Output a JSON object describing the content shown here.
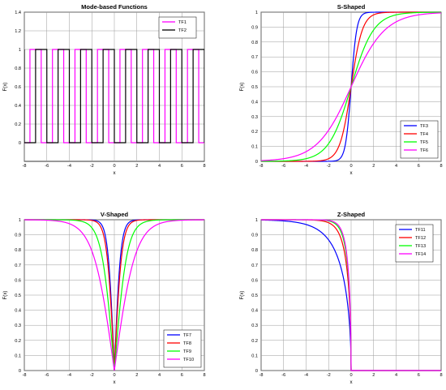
{
  "chart_data": [
    {
      "type": "line",
      "title": "Mode-based Functions",
      "xlabel": "x",
      "ylabel": "F(x)",
      "xlim": [
        -8,
        8
      ],
      "ylim": [
        -0.2,
        1.4
      ],
      "xticks": [
        "-8",
        "-6",
        "-4",
        "-2",
        "0",
        "2",
        "4",
        "6",
        "8"
      ],
      "yticks": [
        "0",
        "0.2",
        "0.4",
        "0.6",
        "0.8",
        "1",
        "1.2",
        "1.4"
      ],
      "ytick_values": [
        0,
        0.2,
        0.4,
        0.6,
        0.8,
        1,
        1.2,
        1.4
      ],
      "grid": true,
      "legend_position": "top-right",
      "series": [
        {
          "name": "TF1",
          "color": "#ff00ff",
          "kind": "square",
          "period": 2,
          "high_start": -7.5,
          "high_width": 1
        },
        {
          "name": "TF2",
          "color": "#000000",
          "kind": "square",
          "period": 2,
          "high_start": -7,
          "high_width": 1
        }
      ]
    },
    {
      "type": "line",
      "title": "S-Shaped",
      "xlabel": "x",
      "ylabel": "F(x)",
      "xlim": [
        -8,
        8
      ],
      "ylim": [
        0,
        1
      ],
      "xticks": [
        "-8",
        "-6",
        "-4",
        "-2",
        "0",
        "2",
        "4",
        "6",
        "8"
      ],
      "yticks": [
        "0",
        "0.1",
        "0.2",
        "0.3",
        "0.4",
        "0.5",
        "0.6",
        "0.7",
        "0.8",
        "0.9",
        "1"
      ],
      "ytick_values": [
        0,
        0.1,
        0.2,
        0.3,
        0.4,
        0.5,
        0.6,
        0.7,
        0.8,
        0.9,
        1
      ],
      "grid": true,
      "legend_position": "bottom-right",
      "series": [
        {
          "name": "TF3",
          "color": "#0000ff",
          "kind": "sigmoid",
          "k": 2
        },
        {
          "name": "TF4",
          "color": "#ff0000",
          "kind": "sigmoid",
          "k": 1
        },
        {
          "name": "TF5",
          "color": "#00ff00",
          "kind": "sigmoid",
          "k": 0.5
        },
        {
          "name": "TF6",
          "color": "#ff00ff",
          "kind": "sigmoid",
          "k": 0.333
        }
      ]
    },
    {
      "type": "line",
      "title": "V-Shaped",
      "xlabel": "x",
      "ylabel": "F(x)",
      "xlim": [
        -8,
        8
      ],
      "ylim": [
        0,
        1
      ],
      "xticks": [
        "-8",
        "-6",
        "-4",
        "-2",
        "0",
        "2",
        "4",
        "6",
        "8"
      ],
      "yticks": [
        "0",
        "0.1",
        "0.2",
        "0.3",
        "0.4",
        "0.5",
        "0.6",
        "0.7",
        "0.8",
        "0.9",
        "1"
      ],
      "ytick_values": [
        0,
        0.1,
        0.2,
        0.3,
        0.4,
        0.5,
        0.6,
        0.7,
        0.8,
        0.9,
        1
      ],
      "grid": true,
      "legend_position": "bottom-right",
      "series": [
        {
          "name": "TF7",
          "color": "#0000ff",
          "kind": "vshape",
          "k": 1.0
        },
        {
          "name": "TF8",
          "color": "#ff0000",
          "kind": "vshape",
          "k": 0.85
        },
        {
          "name": "TF9",
          "color": "#00ff00",
          "kind": "vshape",
          "k": 0.5
        },
        {
          "name": "TF10",
          "color": "#ff00ff",
          "kind": "vshape",
          "k": 0.3
        }
      ]
    },
    {
      "type": "line",
      "title": "Z-Shaped",
      "xlabel": "x",
      "ylabel": "F(x)",
      "xlim": [
        -8,
        8
      ],
      "ylim": [
        0,
        1
      ],
      "xticks": [
        "-8",
        "-6",
        "-4",
        "-2",
        "0",
        "2",
        "4",
        "6",
        "8"
      ],
      "yticks": [
        "0",
        "0.1",
        "0.2",
        "0.3",
        "0.4",
        "0.5",
        "0.6",
        "0.7",
        "0.8",
        "0.9",
        "1"
      ],
      "ytick_values": [
        0,
        0.1,
        0.2,
        0.3,
        0.4,
        0.5,
        0.6,
        0.7,
        0.8,
        0.9,
        1
      ],
      "grid": true,
      "legend_position": "top-right",
      "series": [
        {
          "name": "TF11",
          "color": "#0000ff",
          "kind": "zshape",
          "a": 2
        },
        {
          "name": "TF12",
          "color": "#ff0000",
          "kind": "zshape",
          "a": 5
        },
        {
          "name": "TF13",
          "color": "#00ff00",
          "kind": "zshape",
          "a": 8
        },
        {
          "name": "TF14",
          "color": "#ff00ff",
          "kind": "zshape",
          "a": 10
        }
      ]
    }
  ]
}
